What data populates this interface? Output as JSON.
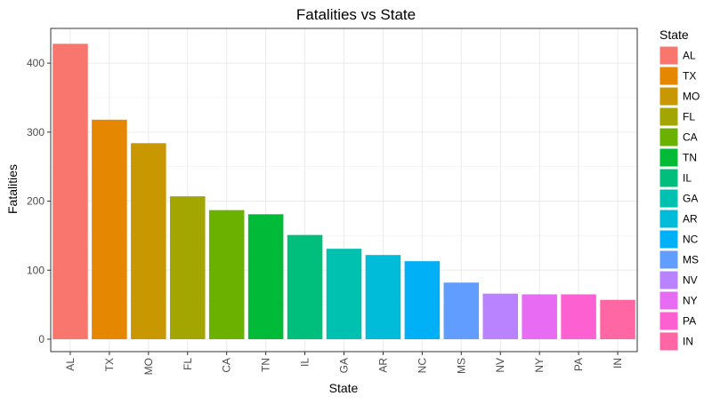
{
  "chart_data": {
    "type": "bar",
    "title": "Fatalities vs State",
    "xlabel": "State",
    "ylabel": "Fatalities",
    "categories": [
      "AL",
      "TX",
      "MO",
      "FL",
      "CA",
      "TN",
      "IL",
      "GA",
      "AR",
      "NC",
      "MS",
      "NV",
      "NY",
      "PA",
      "IN"
    ],
    "values": [
      428,
      318,
      284,
      207,
      187,
      181,
      151,
      131,
      122,
      113,
      82,
      66,
      65,
      65,
      57
    ],
    "colors": [
      "#F8766D",
      "#E58700",
      "#C99800",
      "#A3A500",
      "#6BB100",
      "#00BA38",
      "#00BF7D",
      "#00C0AF",
      "#00BCD8",
      "#00B0F6",
      "#619CFF",
      "#B983FF",
      "#E76BF3",
      "#FD61D1",
      "#FF67A4"
    ],
    "ylim": [
      0,
      440
    ],
    "yticks": [
      0,
      100,
      200,
      300,
      400
    ],
    "legend": {
      "title": "State",
      "position": "right"
    },
    "grid": true
  }
}
